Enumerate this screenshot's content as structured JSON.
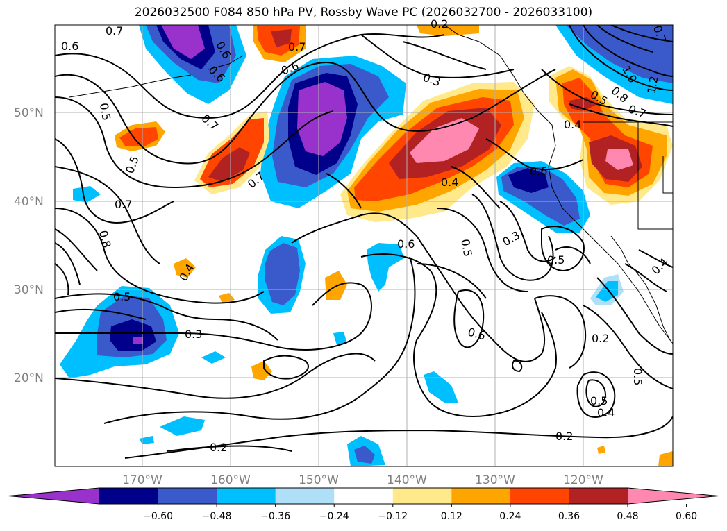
{
  "title": "2026032500 F084 850 hPa PV, Rossby Wave PC (2026032700 - 2026033100)",
  "map": {
    "lat_labels": [
      "50°N",
      "40°N",
      "30°N",
      "20°N"
    ],
    "lon_labels": [
      "170°W",
      "160°W",
      "150°W",
      "140°W",
      "130°W",
      "120°W"
    ],
    "contour_labels": [
      "0.7",
      "0.6",
      "0.5",
      "0.7",
      "0.6",
      "0.3",
      "0.7",
      "0.5",
      "0.8",
      "0.7",
      "0.4",
      "0.6",
      "0.5",
      "0.3",
      "0.6",
      "0.5",
      "0.7",
      "0.4",
      "0.5",
      "0.3",
      "0.2",
      "0.6",
      "0.4",
      "0.5",
      "0.2",
      "0.2",
      "0.5",
      "0.4",
      "0.2",
      "0.6",
      "0.6",
      "1.0",
      "0.8",
      "1.2",
      "0.7",
      "0.4",
      "0.5",
      "0.7"
    ]
  },
  "colorbar": {
    "colors": [
      "#9932cc",
      "#00008b",
      "#3a5acc",
      "#00bfff",
      "#b0e0f8",
      "#ffffff",
      "#ffe98a",
      "#ffa500",
      "#ff4500",
      "#b22222",
      "#ff88b0"
    ],
    "tick_labels": [
      "−0.60",
      "−0.48",
      "−0.36",
      "−0.24",
      "−0.12",
      "0.12",
      "0.24",
      "0.36",
      "0.48",
      "0.60"
    ]
  }
}
